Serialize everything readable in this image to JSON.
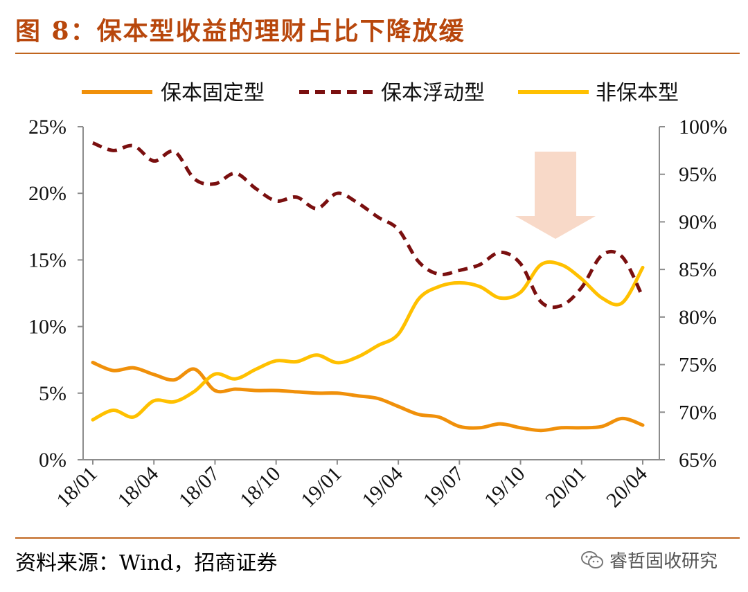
{
  "title": "图 8：保本型收益的理财占比下降放缓",
  "source": "资料来源：Wind，招商证券",
  "watermark": "睿哲固收研究",
  "chart_data": {
    "type": "line",
    "x": [
      "18/01",
      "18/02",
      "18/03",
      "18/04",
      "18/05",
      "18/06",
      "18/07",
      "18/08",
      "18/09",
      "18/10",
      "18/11",
      "18/12",
      "19/01",
      "19/02",
      "19/03",
      "19/04",
      "19/05",
      "19/06",
      "19/07",
      "19/08",
      "19/09",
      "19/10",
      "19/11",
      "19/12",
      "20/01",
      "20/02",
      "20/03",
      "20/04"
    ],
    "x_tick_labels": [
      "18/01",
      "18/04",
      "18/07",
      "18/10",
      "19/01",
      "19/04",
      "19/07",
      "19/10",
      "20/01",
      "20/04"
    ],
    "y_left": {
      "ylim": [
        0,
        25
      ],
      "ticks": [
        "0%",
        "5%",
        "10%",
        "15%",
        "20%",
        "25%"
      ]
    },
    "y_right": {
      "ylim": [
        65,
        100
      ],
      "ticks": [
        "65%",
        "70%",
        "75%",
        "80%",
        "85%",
        "90%",
        "95%",
        "100%"
      ]
    },
    "series": [
      {
        "name": "保本固定型",
        "axis": "left",
        "color": "#f0900a",
        "style": "solid",
        "values": [
          7.3,
          6.7,
          6.9,
          6.4,
          6.0,
          6.8,
          5.2,
          5.3,
          5.2,
          5.2,
          5.1,
          5.0,
          5.0,
          4.8,
          4.6,
          4.0,
          3.4,
          3.2,
          2.5,
          2.4,
          2.7,
          2.4,
          2.2,
          2.4,
          2.4,
          2.5,
          3.1,
          2.6
        ]
      },
      {
        "name": "保本浮动型",
        "axis": "right",
        "color": "#7a0f0f",
        "style": "dashed",
        "values": [
          98.3,
          97.5,
          98.0,
          96.4,
          97.4,
          94.5,
          94.0,
          95.1,
          93.5,
          92.2,
          92.6,
          91.4,
          93.0,
          92.0,
          90.5,
          89.2,
          85.8,
          84.5,
          84.9,
          85.5,
          86.8,
          85.6,
          81.6,
          81.2,
          83.1,
          86.5,
          86.3,
          82.1
        ]
      },
      {
        "name": "非保本型",
        "axis": "right",
        "color": "#ffc000",
        "style": "solid",
        "values": [
          69.2,
          70.2,
          69.5,
          71.2,
          71.1,
          72.2,
          74.0,
          73.5,
          74.5,
          75.4,
          75.3,
          76.0,
          75.2,
          75.8,
          77.0,
          78.2,
          81.9,
          83.2,
          83.6,
          83.2,
          82.0,
          82.6,
          85.5,
          85.5,
          84.0,
          82.0,
          81.5,
          85.2
        ]
      }
    ],
    "annotation": {
      "type": "arrow-down",
      "color": "#f8d9c8"
    }
  }
}
